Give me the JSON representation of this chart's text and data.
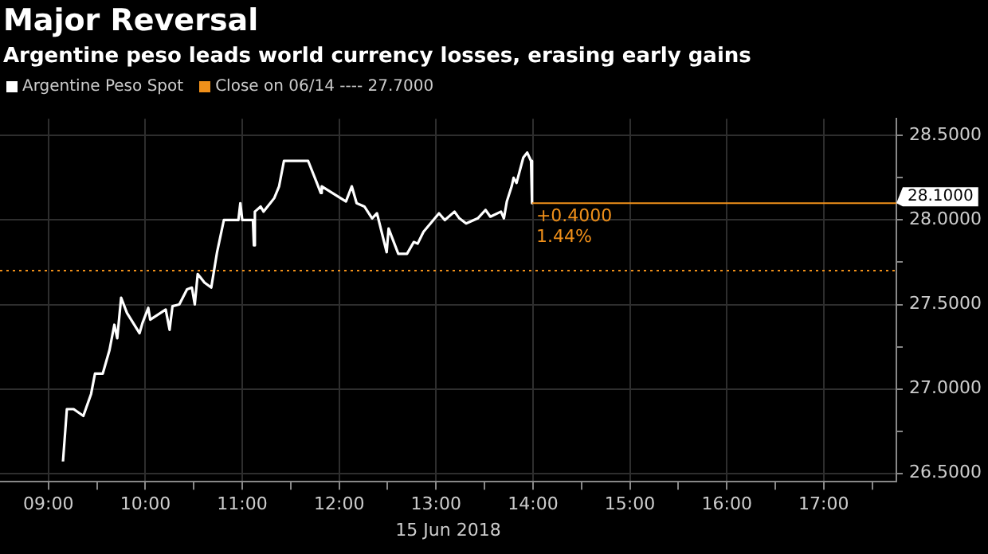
{
  "chart_data": {
    "type": "line",
    "title": "Major Reversal",
    "subtitle": "Argentine peso leads world currency losses, erasing early gains",
    "xlabel": "15 Jun 2018",
    "series": [
      {
        "name": "Argentine Peso Spot",
        "color": "#ffffff",
        "x": [
          9.15,
          9.19,
          9.26,
          9.36,
          9.44,
          9.48,
          9.56,
          9.63,
          9.68,
          9.71,
          9.75,
          9.81,
          9.94,
          9.97,
          10.03,
          10.05,
          10.21,
          10.25,
          10.28,
          10.35,
          10.43,
          10.48,
          10.51,
          10.54,
          10.61,
          10.68,
          10.74,
          10.81,
          10.96,
          10.98,
          11.0,
          11.11,
          11.12,
          11.13,
          11.19,
          11.22,
          11.33,
          11.38,
          11.43,
          11.68,
          11.77,
          11.81,
          11.82,
          12.07,
          12.13,
          12.18,
          12.26,
          12.34,
          12.39,
          12.49,
          12.51,
          12.61,
          12.7,
          12.77,
          12.81,
          12.87,
          13.03,
          13.09,
          13.19,
          13.24,
          13.31,
          13.43,
          13.51,
          13.56,
          13.67,
          13.7,
          13.73,
          13.78,
          13.8,
          13.83,
          13.9,
          13.94,
          13.98,
          13.99
        ],
        "values": [
          26.57,
          26.88,
          26.88,
          26.84,
          26.97,
          27.09,
          27.09,
          27.23,
          27.38,
          27.3,
          27.54,
          27.45,
          27.33,
          27.39,
          27.48,
          27.41,
          27.47,
          27.35,
          27.49,
          27.5,
          27.59,
          27.6,
          27.5,
          27.68,
          27.63,
          27.6,
          27.81,
          28.0,
          28.0,
          28.1,
          28.0,
          28.0,
          27.85,
          28.05,
          28.08,
          28.05,
          28.13,
          28.2,
          28.35,
          28.35,
          28.22,
          28.16,
          28.2,
          28.11,
          28.2,
          28.1,
          28.08,
          28.01,
          28.04,
          27.81,
          27.95,
          27.8,
          27.8,
          27.87,
          27.86,
          27.93,
          28.04,
          28.0,
          28.05,
          28.01,
          27.98,
          28.01,
          28.06,
          28.02,
          28.05,
          28.01,
          28.11,
          28.2,
          28.25,
          28.22,
          28.37,
          28.4,
          28.35,
          28.1
        ]
      }
    ],
    "ref_lines": [
      {
        "axis": "y",
        "value": 27.7,
        "label": "Close on 06/14 ---- 27.7000",
        "color": "#f0901a",
        "line_style": "dotted"
      },
      {
        "axis": "y",
        "value": 28.1,
        "label": "28.1000",
        "color": "#f0901a",
        "line_style": "solid"
      }
    ],
    "annotations": [
      {
        "text": "+0.4000",
        "x": 14,
        "y": 28.1
      },
      {
        "text": "1.44%",
        "x": 14,
        "y": 28.1
      }
    ],
    "xlim": [
      8.5,
      17.75
    ],
    "ylim": [
      26.45,
      28.6
    ],
    "xticks": [
      {
        "value": 9,
        "label": "09:00"
      },
      {
        "value": 9.5,
        "label": null
      },
      {
        "value": 10,
        "label": "10:00"
      },
      {
        "value": 10.5,
        "label": null
      },
      {
        "value": 11,
        "label": "11:00"
      },
      {
        "value": 11.5,
        "label": null
      },
      {
        "value": 12,
        "label": "12:00"
      },
      {
        "value": 12.5,
        "label": null
      },
      {
        "value": 13,
        "label": "13:00"
      },
      {
        "value": 13.5,
        "label": null
      },
      {
        "value": 14,
        "label": "14:00"
      },
      {
        "value": 14.5,
        "label": null
      },
      {
        "value": 15,
        "label": "15:00"
      },
      {
        "value": 15.5,
        "label": null
      },
      {
        "value": 16,
        "label": "16:00"
      },
      {
        "value": 16.5,
        "label": null
      },
      {
        "value": 17,
        "label": "17:00"
      },
      {
        "value": 17.5,
        "label": null
      }
    ],
    "yticks": [
      {
        "value": 26.5,
        "label": "26.5000"
      },
      {
        "value": 26.75,
        "label": null
      },
      {
        "value": 27,
        "label": "27.0000"
      },
      {
        "value": 27.25,
        "label": null
      },
      {
        "value": 27.5,
        "label": "27.5000"
      },
      {
        "value": 27.75,
        "label": null
      },
      {
        "value": 28,
        "label": "28.0000"
      },
      {
        "value": 28.25,
        "label": null
      },
      {
        "value": 28.5,
        "label": "28.5000"
      }
    ],
    "grid": true,
    "legend": "top left",
    "marker": "none",
    "line_style": "solid"
  }
}
